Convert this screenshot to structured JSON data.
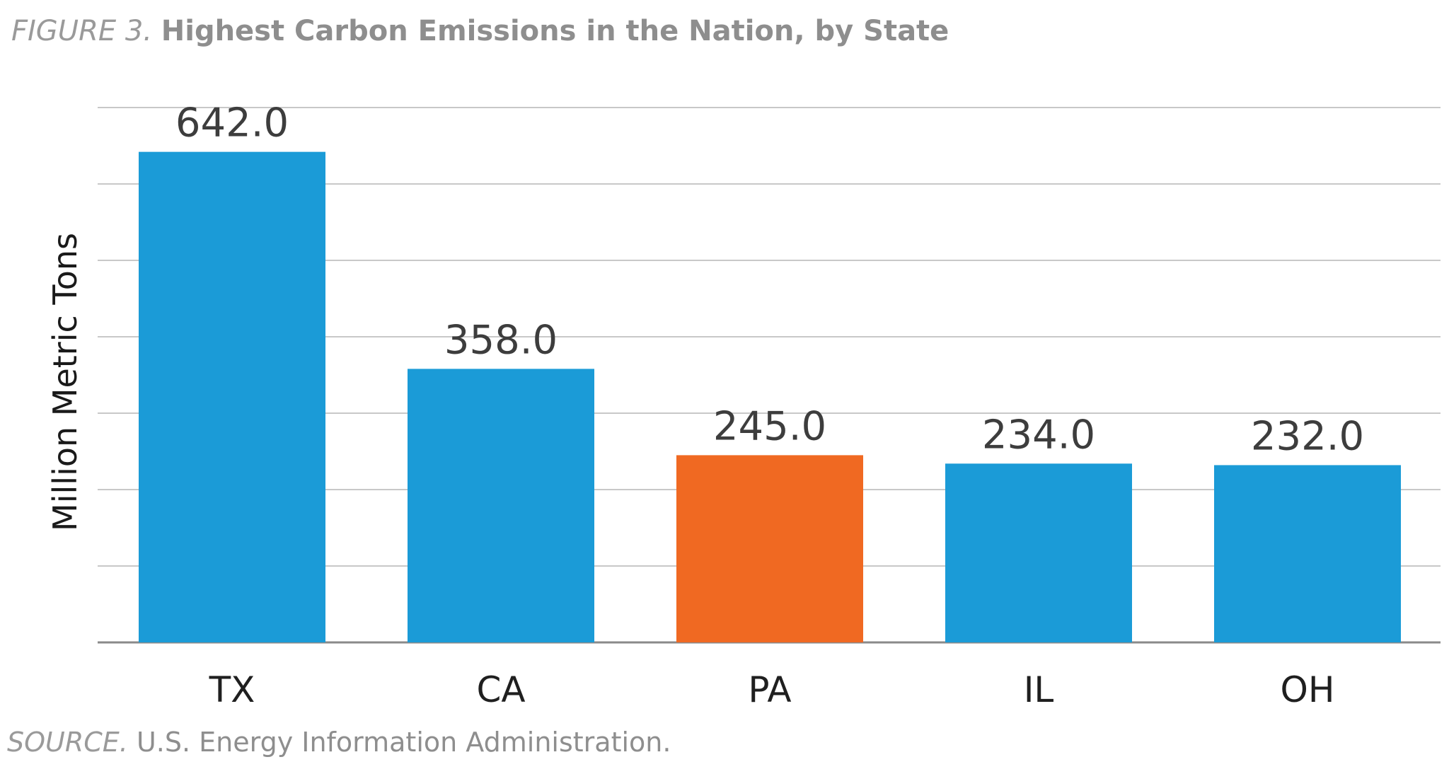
{
  "header": {
    "figure_label": "FIGURE 3.",
    "title": "Highest Carbon Emissions in the Nation, by State"
  },
  "footer": {
    "source_label": "SOURCE.",
    "source_text": "U.S. Energy Information Administration."
  },
  "chart_data": {
    "type": "bar",
    "title": "Highest Carbon Emissions in the Nation, by State",
    "xlabel": "",
    "ylabel": "Million Metric Tons",
    "categories": [
      "TX",
      "CA",
      "PA",
      "IL",
      "OH"
    ],
    "values": [
      642.0,
      358.0,
      245.0,
      234.0,
      232.0
    ],
    "value_labels": [
      "642.0",
      "358.0",
      "245.0",
      "234.0",
      "232.0"
    ],
    "ylim": [
      0,
      700
    ],
    "gridlines": [
      0,
      100,
      200,
      300,
      400,
      500,
      600,
      700
    ],
    "grid": true,
    "y_tick_labels_shown": false,
    "colors": {
      "default": "#1b9bd7",
      "highlight": "#f06922",
      "grid": "#c8c8c8",
      "axis": "#8a8a8a"
    },
    "highlight_category": "PA"
  }
}
